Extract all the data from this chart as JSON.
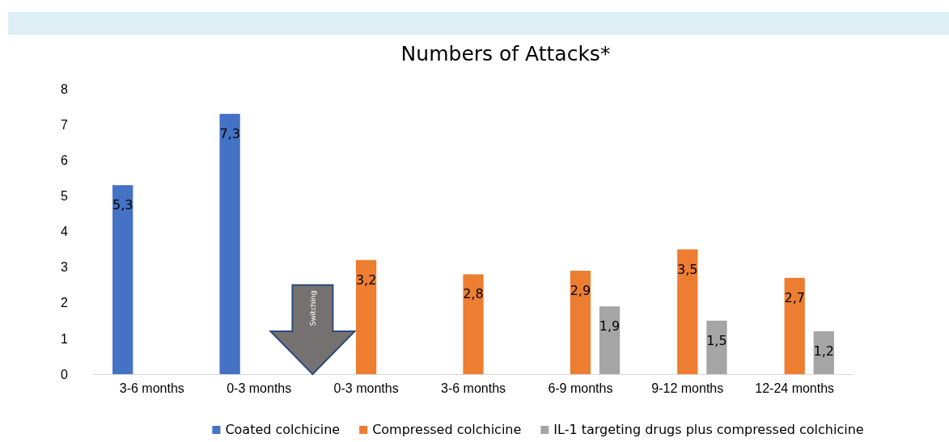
{
  "chart_data": {
    "type": "bar",
    "title": "Numbers of Attacks*",
    "categories": [
      "3-6 months",
      "0-3 months",
      "0-3 months",
      "3-6 months",
      "6-9 months",
      "9-12 months",
      "12-24 months"
    ],
    "series": [
      {
        "name": "Coated colchicine",
        "color": "#4472c4",
        "values": [
          5.3,
          7.3,
          null,
          null,
          null,
          null,
          null
        ],
        "value_labels": [
          "5,3",
          "7,3",
          null,
          null,
          null,
          null,
          null
        ]
      },
      {
        "name": "Compressed colchicine",
        "color": "#ed7d31",
        "values": [
          null,
          null,
          3.2,
          2.8,
          2.9,
          3.5,
          2.7
        ],
        "value_labels": [
          null,
          null,
          "3,2",
          "2,8",
          "2,9",
          "3,5",
          "2,7"
        ]
      },
      {
        "name": "IL-1 targeting drugs plus compressed colchicine",
        "color": "#a5a5a5",
        "values": [
          null,
          null,
          null,
          null,
          1.9,
          1.5,
          1.2
        ],
        "value_labels": [
          null,
          null,
          null,
          null,
          "1,9",
          "1,5",
          "1,2"
        ]
      }
    ],
    "ylim": [
      0,
      8
    ],
    "yticks": [
      0,
      1,
      2,
      3,
      4,
      5,
      6,
      7,
      8
    ],
    "grid": false,
    "legend": "bottom",
    "annotations": [
      "Switching"
    ]
  }
}
